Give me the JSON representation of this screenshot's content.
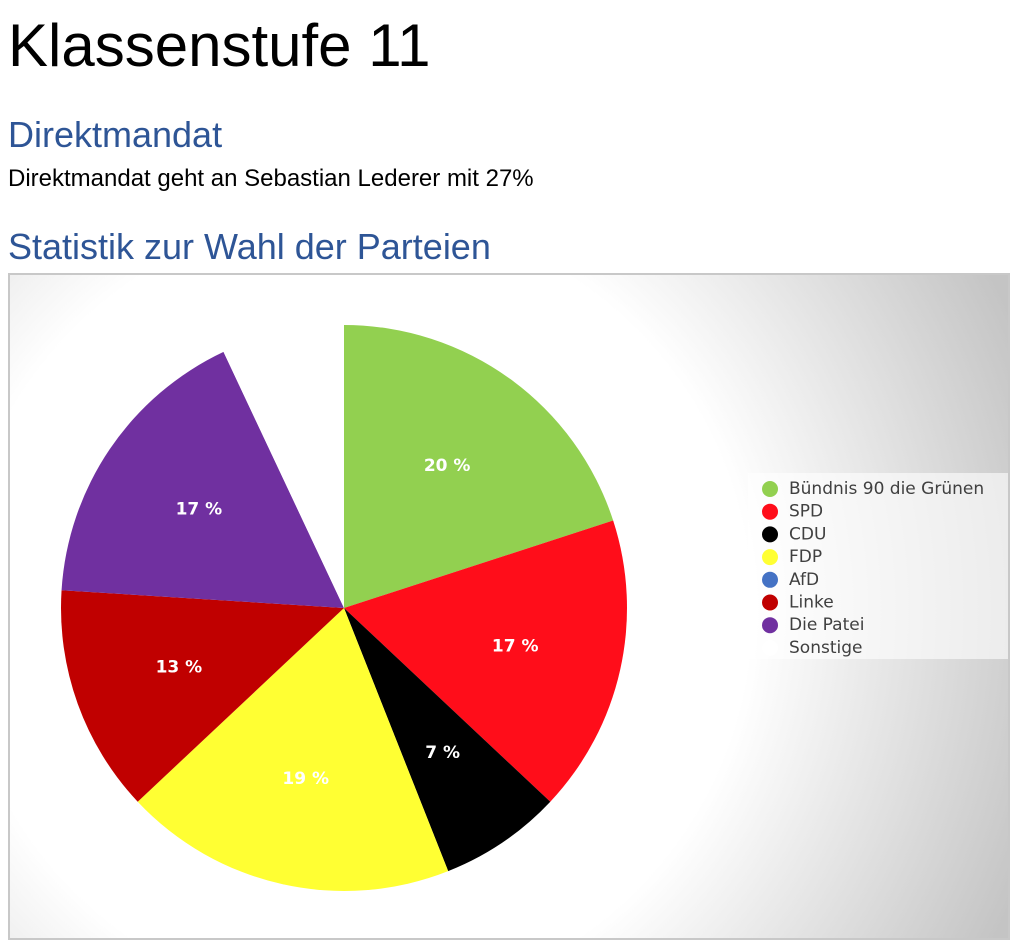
{
  "page": {
    "title": "Klassenstufe 11"
  },
  "direktmandat": {
    "heading": "Direktmandat",
    "text": "Direktmandat geht an Sebastian Lederer mit 27%"
  },
  "statistik": {
    "heading": "Statistik zur Wahl der Parteien"
  },
  "chart_data": {
    "type": "pie",
    "title": "",
    "legend_position": "right",
    "label_format": "{v} %",
    "label_color": "#ffffff",
    "slices": [
      {
        "label": "Bündnis 90 die Grünen",
        "value": 20,
        "color": "#92d050",
        "show_label": true
      },
      {
        "label": "SPD",
        "value": 17,
        "color": "#ff0d1a",
        "show_label": true
      },
      {
        "label": "CDU",
        "value": 7,
        "color": "#000000",
        "show_label": true
      },
      {
        "label": "FDP",
        "value": 19,
        "color": "#ffff33",
        "show_label": true
      },
      {
        "label": "AfD",
        "value": 0,
        "color": "#4472c4",
        "show_label": false
      },
      {
        "label": "Linke",
        "value": 13,
        "color": "#c00000",
        "show_label": true
      },
      {
        "label": "Die Patei",
        "value": 17,
        "color": "#7030a0",
        "show_label": true
      },
      {
        "label": "Sonstige",
        "value": 7,
        "color": "#ffffff",
        "show_label": false
      }
    ]
  }
}
